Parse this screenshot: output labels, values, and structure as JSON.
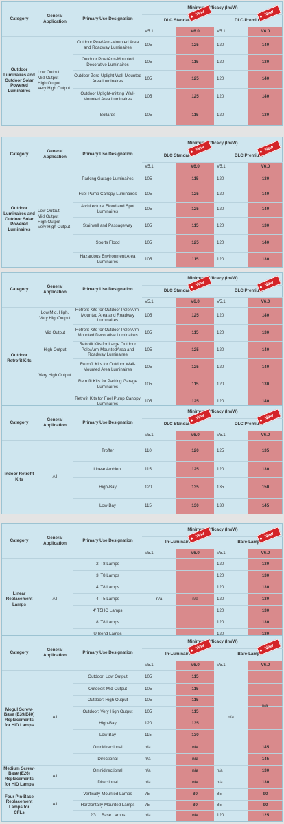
{
  "headers": {
    "category": "Category",
    "general": "General Application",
    "primary": "Primary Use Designation",
    "min_eff": "Minimum Efficacy (lm/W)",
    "dlc_std": "DLC Standard",
    "dlc_prem": "DLC Premium",
    "in_lum": "In-Luminaire",
    "bare": "Bare-Lamp",
    "v51": "V5.1",
    "v60": "V6.0",
    "new_tag": "New"
  },
  "tables": [
    {
      "category": "Outdoor Luminaires and Outdoor Solar Powered Luminaires",
      "general": [
        {
          "text": "Low Output\nMid Output\nHigh Output\nVery High Output"
        }
      ],
      "rows": [
        {
          "name": "Outdoor Pole/Arm-Mounted Area and Roadway Luminaires",
          "a": "105",
          "b": "125",
          "c": "120",
          "d": "140"
        },
        {
          "name": "Outdoor Pole/Arm-Mounted Decorative Luminaires",
          "a": "105",
          "b": "115",
          "c": "120",
          "d": "130"
        },
        {
          "name": "Outdoor Zero-Uplight Wall-Mounted Area Luminaires",
          "a": "105",
          "b": "125",
          "c": "120",
          "d": "140"
        },
        {
          "name": "Outdoor Uplight-mitting Wall-Mounted Area Luminaires",
          "a": "105",
          "b": "125",
          "c": "120",
          "d": "140"
        },
        {
          "name": "Bollards",
          "a": "105",
          "b": "115",
          "c": "120",
          "d": "130"
        }
      ]
    },
    {
      "category": "Outdoor Luminaires and Outdoor Solar Powered Luminaires",
      "general": [
        {
          "text": "Low Output\nMid Output\nHigh Output\nVery High Output"
        }
      ],
      "rows": [
        {
          "name": "Parking Garage Luminaires",
          "a": "105",
          "b": "115",
          "c": "120",
          "d": "130"
        },
        {
          "name": "Fuel Pump Canopy Luminaires",
          "a": "105",
          "b": "125",
          "c": "120",
          "d": "140"
        },
        {
          "name": "Architectural Flood and Spot Luminaires",
          "a": "105",
          "b": "125",
          "c": "120",
          "d": "140"
        },
        {
          "name": "Stairwell and Passageway",
          "a": "105",
          "b": "115",
          "c": "120",
          "d": "130"
        },
        {
          "name": "Sports Flood",
          "a": "105",
          "b": "125",
          "c": "120",
          "d": "140"
        },
        {
          "name": "Hazardous Environment Area Luminaires",
          "a": "105",
          "b": "115",
          "c": "120",
          "d": "130"
        }
      ]
    },
    {
      "category": "Outdoor Retrofit Kits",
      "general": [
        {
          "text": "Low,Mid, High, Very HighOutput",
          "rows": [
            0
          ]
        },
        {
          "text": "Mid Output",
          "rows": [
            1
          ]
        },
        {
          "text": "High Output",
          "rows": [
            2
          ]
        },
        {
          "text": "Very High Output",
          "rows": [
            3,
            4
          ]
        }
      ],
      "rows": [
        {
          "name": "Retrofit Kits for Outdoor Pole/Arm-Mounted Area and Roadway Luminaires",
          "a": "105",
          "b": "125",
          "c": "120",
          "d": "140"
        },
        {
          "name": "Retrofit Kits for Outdoor Pole/Arm-Mounted Decorative Luminaires",
          "a": "105",
          "b": "115",
          "c": "120",
          "d": "130"
        },
        {
          "name": "Retrofit Kits for Large Outdoor Pole/Arm-MountedArea and Roadway Luminaires",
          "a": "105",
          "b": "125",
          "c": "120",
          "d": "140"
        },
        {
          "name": "Retrofit Kits for Outdoor Wall-Mounted Area Luminaires",
          "a": "105",
          "b": "125",
          "c": "120",
          "d": "140"
        },
        {
          "name": "Retrofit Kits for Parking Garage Luminaires",
          "a": "105",
          "b": "115",
          "c": "120",
          "d": "130"
        },
        {
          "name": "Retrofit Kits for Fuel Pump Canopy Luminaires",
          "a": "105",
          "b": "125",
          "c": "120",
          "d": "140"
        }
      ]
    },
    {
      "category": "Indoor Retrofit Kits",
      "general": [
        {
          "text": "All"
        }
      ],
      "rows": [
        {
          "name": "Troffer",
          "a": "110",
          "b": "120",
          "c": "125",
          "d": "135"
        },
        {
          "name": "Linear Ambient",
          "a": "115",
          "b": "125",
          "c": "120",
          "d": "130"
        },
        {
          "name": "High-Bay",
          "a": "120",
          "b": "135",
          "c": "135",
          "d": "150"
        },
        {
          "name": "Low-Bay",
          "a": "115",
          "b": "130",
          "c": "130",
          "d": "145"
        }
      ]
    },
    {
      "category": "Linear Replacement Lamps",
      "general": [
        {
          "text": "All"
        }
      ],
      "rows": [
        {
          "name": "2' T8 Lamps",
          "c": "120",
          "d": "130"
        },
        {
          "name": "3' T8 Lamps",
          "c": "120",
          "d": "130"
        },
        {
          "name": "4' T8 Lamps",
          "c": "120",
          "d": "130"
        },
        {
          "name": "4' T5 Lamps",
          "c": "120",
          "d": "130"
        },
        {
          "name": "4' T5HO Lamps",
          "c": "120",
          "d": "130"
        },
        {
          "name": "8' T8 Lamps",
          "c": "120",
          "d": "130"
        },
        {
          "name": "U-Bend Lamps",
          "c": "120",
          "d": "130"
        }
      ],
      "merged_a": "n/a",
      "merged_b": "n/a"
    },
    {
      "groups": [
        {
          "category": "Mogul Screw-Base (E39/E40) Replacements for HID Lamps",
          "general": "All",
          "rows": [
            0,
            1,
            2,
            3,
            4,
            5,
            6,
            7
          ]
        },
        {
          "category": "Medium Screw-Base (E26) Replacements for HID Lamps",
          "general": "All",
          "rows": [
            8,
            9
          ]
        },
        {
          "category": "Four Pin-Base Replacement Lamps for CFLs",
          "general": "All",
          "rows": [
            10,
            11,
            12
          ]
        }
      ],
      "rows": [
        {
          "name": "Outdoor: Low Output",
          "a": "105",
          "b": "115"
        },
        {
          "name": "Outdoor: Mid Output",
          "a": "105",
          "b": "115"
        },
        {
          "name": "Outdoor: High Output",
          "a": "105",
          "b": "115"
        },
        {
          "name": "Outdoor: Very High Output",
          "a": "105",
          "b": "115"
        },
        {
          "name": "High-Bay",
          "a": "120",
          "b": "135"
        },
        {
          "name": "Low-Bay",
          "a": "115",
          "b": "130"
        },
        {
          "name": "Omnidirectional",
          "a": "n/a",
          "b": "n/a",
          "d": "145"
        },
        {
          "name": "Directional",
          "a": "n/a",
          "b": "n/a",
          "d": "145"
        },
        {
          "name": "Omnidirectional",
          "a": "n/a",
          "b": "n/a",
          "c": "n/a",
          "d": "130"
        },
        {
          "name": "Directional",
          "a": "n/a",
          "b": "n/a",
          "c": "n/a",
          "d": "130"
        },
        {
          "name": "Vertically-Mounted Lamps",
          "a": "75",
          "b": "80",
          "c": "85",
          "d": "90"
        },
        {
          "name": "Horizontally-Mounted Lamps",
          "a": "75",
          "b": "80",
          "c": "85",
          "d": "90"
        },
        {
          "name": "2G11 Base Lamps",
          "a": "n/a",
          "b": "n/a",
          "c": "120",
          "d": "125"
        }
      ],
      "merged_cd": "n/a"
    }
  ]
}
